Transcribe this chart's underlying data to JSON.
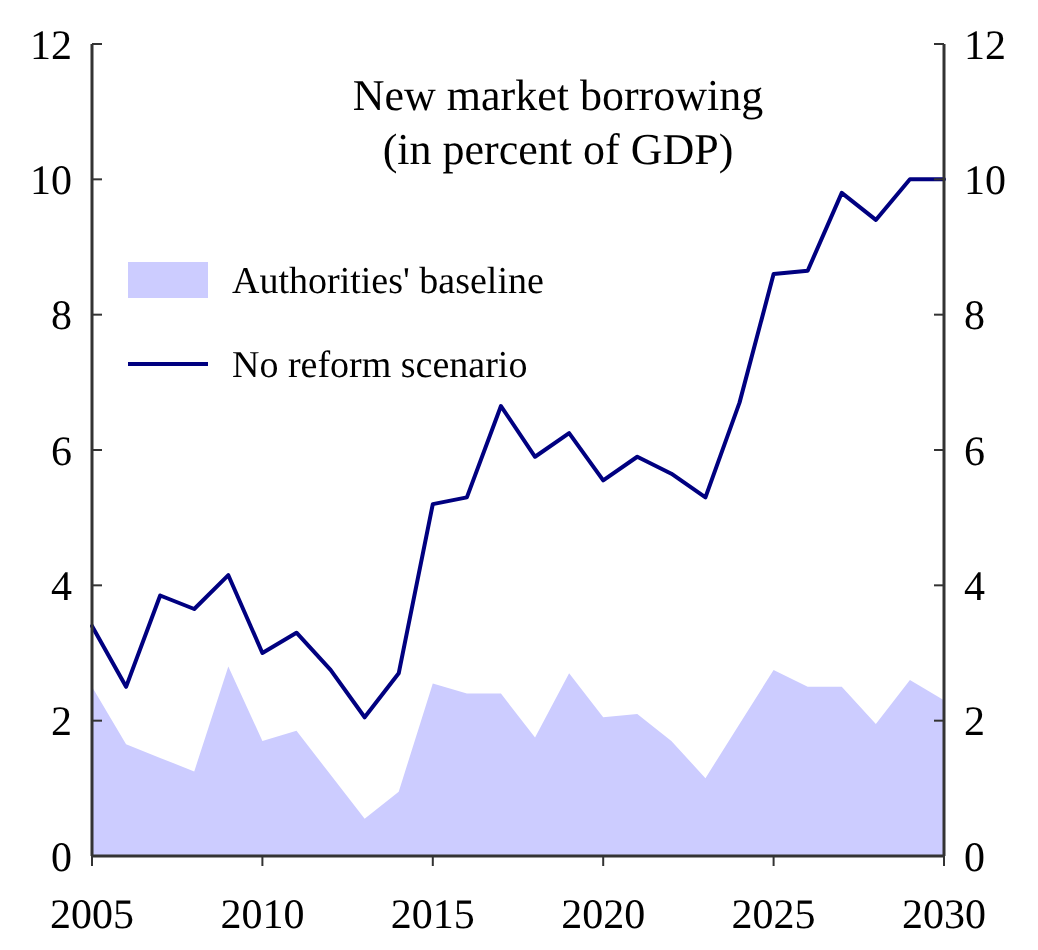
{
  "chart_data": {
    "type": "line",
    "title": "New market borrowing\n(in percent of GDP)",
    "x": [
      2005,
      2006,
      2007,
      2008,
      2009,
      2010,
      2011,
      2012,
      2013,
      2014,
      2015,
      2016,
      2017,
      2018,
      2019,
      2020,
      2021,
      2022,
      2023,
      2024,
      2025,
      2026,
      2027,
      2028,
      2029,
      2030
    ],
    "series": [
      {
        "name": "Authorities' baseline",
        "type": "area",
        "color": "#ccccff",
        "values": [
          2.5,
          1.65,
          1.45,
          1.25,
          2.8,
          1.7,
          1.85,
          1.2,
          0.55,
          0.95,
          2.55,
          2.4,
          2.4,
          1.75,
          2.7,
          2.05,
          2.1,
          1.7,
          1.15,
          1.95,
          2.75,
          2.5,
          2.5,
          1.95,
          2.6,
          2.3
        ]
      },
      {
        "name": "No reform scenario",
        "type": "line",
        "color": "#000080",
        "values": [
          3.4,
          2.5,
          3.85,
          3.65,
          4.15,
          3.0,
          3.3,
          2.75,
          2.05,
          2.7,
          5.2,
          5.3,
          6.65,
          5.9,
          6.25,
          5.55,
          5.9,
          5.65,
          5.3,
          6.7,
          8.6,
          8.65,
          9.8,
          9.4,
          10.0,
          10.0
        ]
      }
    ],
    "xlim": [
      2005,
      2030
    ],
    "xticks": [
      2005,
      2010,
      2015,
      2020,
      2025,
      2030
    ],
    "ylim": [
      0,
      12
    ],
    "yticks": [
      0,
      2,
      4,
      6,
      8,
      10,
      12
    ],
    "y2lim": [
      0,
      12
    ],
    "y2ticks": [
      0,
      2,
      4,
      6,
      8,
      10,
      12
    ],
    "legend": "top left",
    "grid": false
  }
}
